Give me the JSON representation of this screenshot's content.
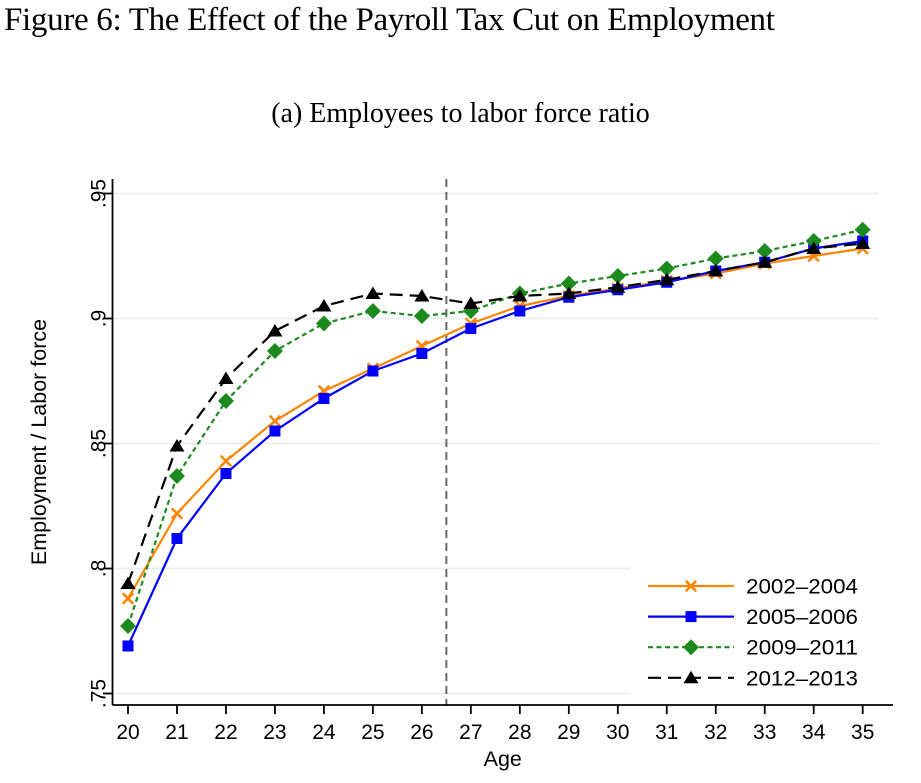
{
  "figure": {
    "title": "Figure 6: The Effect of the Payroll Tax Cut on Employment",
    "subtitle": "(a) Employees to labor force ratio"
  },
  "chart_data": {
    "type": "line",
    "title": "(a) Employees to labor force ratio",
    "xlabel": "Age",
    "ylabel": "Employment / Labor force",
    "x": [
      20,
      21,
      22,
      23,
      24,
      25,
      26,
      27,
      28,
      29,
      30,
      31,
      32,
      33,
      34,
      35
    ],
    "x_tick_labels": [
      "20",
      "21",
      "22",
      "23",
      "24",
      "25",
      "26",
      "27",
      "28",
      "29",
      "30",
      "31",
      "32",
      "33",
      "34",
      "35"
    ],
    "y_ticks": [
      0.75,
      0.8,
      0.85,
      0.9,
      0.95
    ],
    "y_tick_labels": [
      ".75",
      ".8",
      ".85",
      ".9",
      ".95"
    ],
    "xlim": [
      19.6,
      35.6
    ],
    "ylim": [
      0.745,
      0.957
    ],
    "grid": true,
    "gridline_color": "#e7eef3",
    "vline": {
      "x": 26.5,
      "style": "dashed",
      "color": "#6a6a6a"
    },
    "legend_position": "bottom-right",
    "series": [
      {
        "name": "2002–2004",
        "color": "#ff8400",
        "marker": "x",
        "line": "solid",
        "values": [
          0.788,
          0.822,
          0.843,
          0.859,
          0.871,
          0.88,
          0.889,
          0.898,
          0.905,
          0.909,
          0.912,
          0.915,
          0.918,
          0.922,
          0.925,
          0.928
        ]
      },
      {
        "name": "2005–2006",
        "color": "#0000ff",
        "marker": "square",
        "line": "solid",
        "values": [
          0.769,
          0.812,
          0.838,
          0.855,
          0.868,
          0.879,
          0.886,
          0.896,
          0.903,
          0.9085,
          0.9115,
          0.9145,
          0.919,
          0.9225,
          0.928,
          0.931
        ]
      },
      {
        "name": "2009–2011",
        "color": "#1d8a1d",
        "marker": "diamond",
        "line": "short-dash",
        "values": [
          0.777,
          0.837,
          0.867,
          0.887,
          0.898,
          0.903,
          0.901,
          0.903,
          0.91,
          0.914,
          0.917,
          0.92,
          0.924,
          0.927,
          0.931,
          0.9355
        ]
      },
      {
        "name": "2012–2013",
        "color": "#000000",
        "marker": "triangle",
        "line": "long-dash",
        "values": [
          0.794,
          0.849,
          0.876,
          0.895,
          0.905,
          0.91,
          0.909,
          0.906,
          0.909,
          0.91,
          0.9125,
          0.9155,
          0.919,
          0.9225,
          0.928,
          0.93
        ]
      }
    ]
  }
}
